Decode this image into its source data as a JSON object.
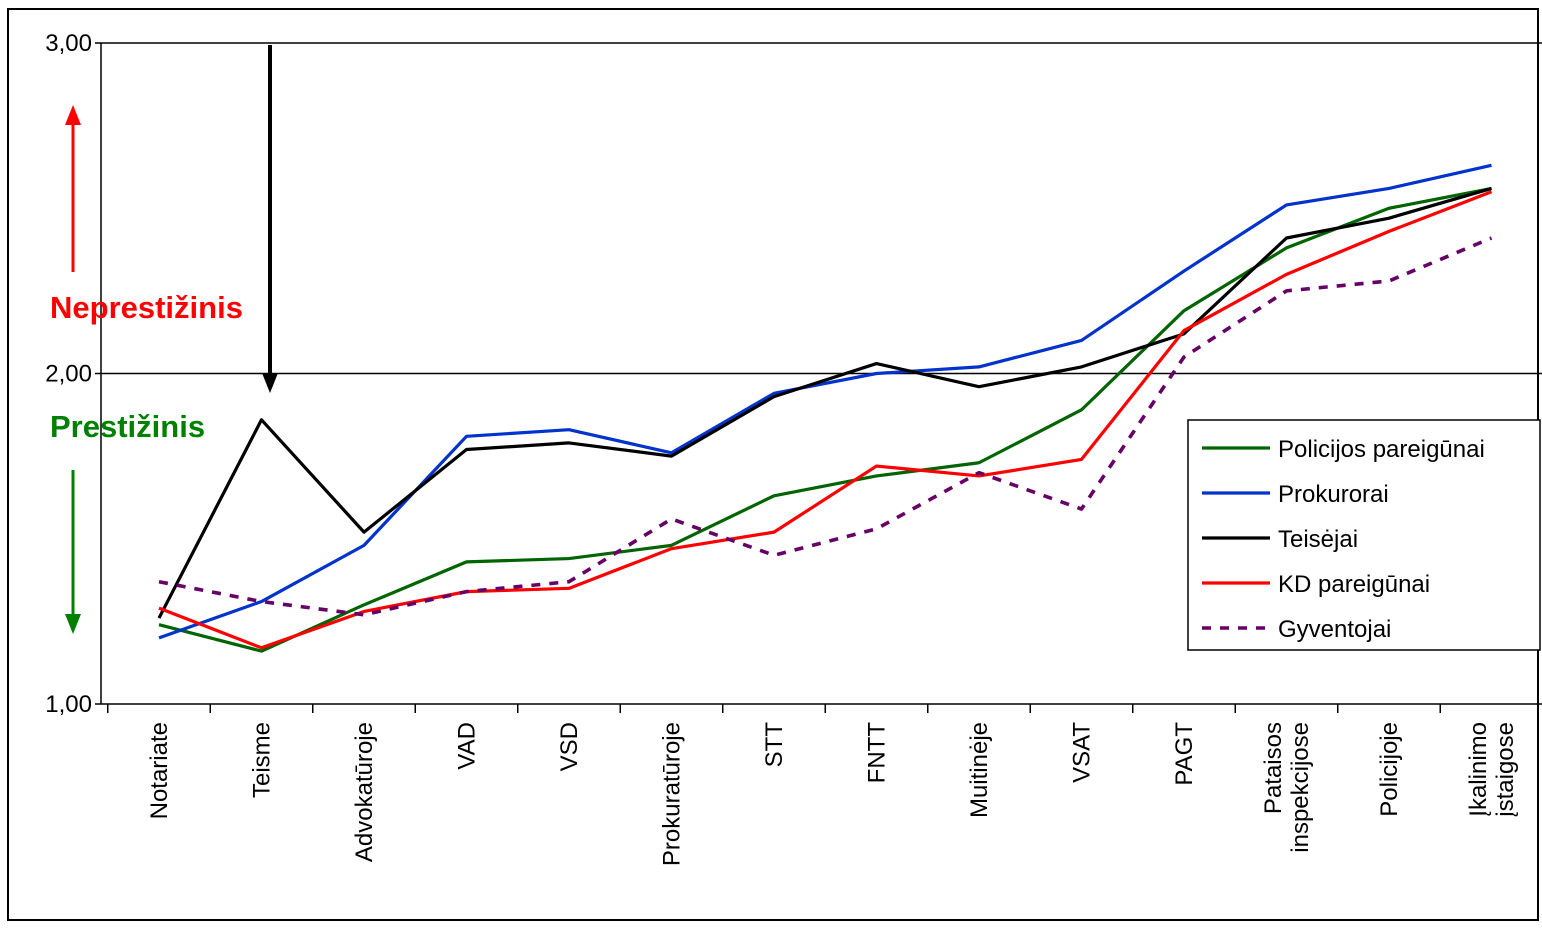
{
  "chart_data": {
    "type": "line",
    "title": "",
    "xlabel": "",
    "ylabel": "",
    "ylim": [
      1.0,
      3.0
    ],
    "yticks": [
      "1,00",
      "2,00",
      "3,00"
    ],
    "grid": "horizontal-major",
    "legend_position": "right",
    "categories": [
      [
        "Notariate"
      ],
      [
        "Teisme"
      ],
      [
        "Advokatūroje"
      ],
      [
        "VAD"
      ],
      [
        "VSD"
      ],
      [
        "Prokuratūroje"
      ],
      [
        "STT"
      ],
      [
        "FNTT"
      ],
      [
        "Muitinėje"
      ],
      [
        "VSAT"
      ],
      [
        "PAGT"
      ],
      [
        "Pataisos",
        "inspekcijose"
      ],
      [
        "Policijoje"
      ],
      [
        "Įkalinimo",
        "įstaigose"
      ]
    ],
    "series": [
      {
        "name": "Policijos pareigūnai",
        "color": "#006400",
        "dash": "solid",
        "values": [
          1.24,
          1.16,
          1.3,
          1.43,
          1.44,
          1.48,
          1.63,
          1.69,
          1.73,
          1.89,
          2.19,
          2.38,
          2.5,
          2.56
        ]
      },
      {
        "name": "Prokurorai",
        "color": "#0033cc",
        "dash": "solid",
        "values": [
          1.2,
          1.31,
          1.48,
          1.81,
          1.83,
          1.76,
          1.94,
          2.0,
          2.02,
          2.1,
          2.31,
          2.51,
          2.56,
          2.63
        ]
      },
      {
        "name": "Teisėjai",
        "color": "#000000",
        "dash": "solid",
        "values": [
          1.26,
          1.86,
          1.52,
          1.77,
          1.79,
          1.75,
          1.93,
          2.03,
          1.96,
          2.02,
          2.12,
          2.41,
          2.47,
          2.56
        ]
      },
      {
        "name": "KD pareigūnai",
        "color": "#ff0000",
        "dash": "solid",
        "values": [
          1.29,
          1.17,
          1.28,
          1.34,
          1.35,
          1.47,
          1.52,
          1.72,
          1.69,
          1.74,
          2.13,
          2.3,
          2.43,
          2.55
        ]
      },
      {
        "name": "Gyventojai",
        "color": "#660066",
        "dash": "dotted",
        "values": [
          1.37,
          1.31,
          1.27,
          1.34,
          1.37,
          1.56,
          1.45,
          1.53,
          1.7,
          1.59,
          2.05,
          2.25,
          2.28,
          2.41
        ]
      }
    ],
    "annotations": {
      "upper_label": {
        "text": "Neprestižinis",
        "color": "#ff0000"
      },
      "lower_label": {
        "text": "Prestižinis",
        "color": "#008000"
      },
      "up_arrow_color": "#ff0000",
      "down_arrow_color": "#008000",
      "divider_arrow_color": "#000000"
    }
  }
}
